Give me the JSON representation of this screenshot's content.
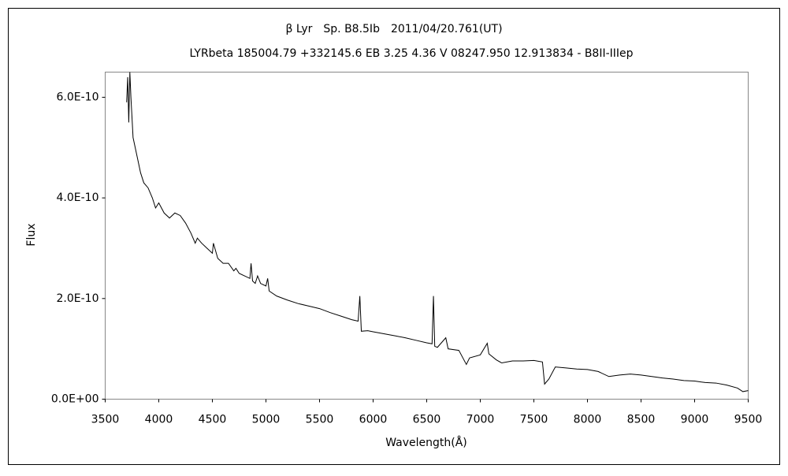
{
  "chart_data": {
    "type": "line",
    "title": "β Lyr　Sp. B8.5Ib　2011/04/20.761(UT)",
    "subtitle": "LYRbeta 185004.79 +332145.6 EB 3.25 4.36 V 08247.950 12.913834 - B8II-IIIep",
    "x_label": "Wavelength(Å)",
    "y_label": "Flux",
    "color": "#000000",
    "grid": false,
    "xlim": [
      3500,
      9500
    ],
    "xticks": [
      3500,
      4000,
      4500,
      5000,
      5500,
      6000,
      6500,
      7000,
      7500,
      8000,
      8500,
      9000,
      9500
    ],
    "ylim": [
      0,
      6.5e-10
    ],
    "yticks": [
      {
        "value": 0,
        "label": "0.0E+00"
      },
      {
        "value": 2e-10,
        "label": "2.0E-10"
      },
      {
        "value": 4e-10,
        "label": "4.0E-10"
      },
      {
        "value": 6e-10,
        "label": "6.0E-10"
      }
    ],
    "x": [
      3700,
      3710,
      3720,
      3730,
      3740,
      3750,
      3760,
      3780,
      3800,
      3830,
      3860,
      3900,
      3940,
      3970,
      4000,
      4050,
      4100,
      4150,
      4200,
      4250,
      4300,
      4340,
      4360,
      4400,
      4450,
      4500,
      4510,
      4550,
      4600,
      4650,
      4700,
      4720,
      4750,
      4800,
      4850,
      4861,
      4875,
      4900,
      4922,
      4950,
      5000,
      5016,
      5030,
      5100,
      5200,
      5300,
      5400,
      5500,
      5600,
      5700,
      5800,
      5860,
      5876,
      5890,
      5950,
      6000,
      6100,
      6200,
      6300,
      6400,
      6500,
      6550,
      6563,
      6575,
      6600,
      6678,
      6700,
      6800,
      6870,
      6900,
      7000,
      7065,
      7080,
      7150,
      7200,
      7300,
      7400,
      7500,
      7580,
      7600,
      7640,
      7700,
      7800,
      7900,
      8000,
      8100,
      8200,
      8300,
      8400,
      8500,
      8600,
      8700,
      8800,
      8900,
      9000,
      9100,
      9200,
      9300,
      9400,
      9450,
      9500
    ],
    "values": [
      5.9e-10,
      6.4e-10,
      5.5e-10,
      6.5e-10,
      6e-10,
      5.6e-10,
      5.2e-10,
      5e-10,
      4.8e-10,
      4.5e-10,
      4.3e-10,
      4.2e-10,
      4e-10,
      3.8e-10,
      3.9e-10,
      3.7e-10,
      3.6e-10,
      3.7e-10,
      3.65e-10,
      3.5e-10,
      3.3e-10,
      3.1e-10,
      3.2e-10,
      3.1e-10,
      3e-10,
      2.9e-10,
      3.1e-10,
      2.8e-10,
      2.7e-10,
      2.7e-10,
      2.55e-10,
      2.6e-10,
      2.5e-10,
      2.45e-10,
      2.4e-10,
      2.7e-10,
      2.35e-10,
      2.3e-10,
      2.45e-10,
      2.3e-10,
      2.25e-10,
      2.4e-10,
      2.15e-10,
      2.05e-10,
      1.97e-10,
      1.9e-10,
      1.85e-10,
      1.8e-10,
      1.72e-10,
      1.65e-10,
      1.58e-10,
      1.55e-10,
      2.05e-10,
      1.35e-10,
      1.36e-10,
      1.34e-10,
      1.3e-10,
      1.26e-10,
      1.22e-10,
      1.17e-10,
      1.12e-10,
      1.1e-10,
      2.05e-10,
      1.05e-10,
      1.03e-10,
      1.22e-10,
      1e-10,
      9.7e-11,
      6.9e-11,
      8.2e-11,
      8.8e-11,
      1.11e-10,
      9e-11,
      7.8e-11,
      7.2e-11,
      7.6e-11,
      7.6e-11,
      7.7e-11,
      7.4e-11,
      3e-11,
      4e-11,
      6.4e-11,
      6.2e-11,
      6e-11,
      5.9e-11,
      5.5e-11,
      4.5e-11,
      4.8e-11,
      5e-11,
      4.8e-11,
      4.5e-11,
      4.2e-11,
      4e-11,
      3.7e-11,
      3.6e-11,
      3.3e-11,
      3.2e-11,
      2.8e-11,
      2.2e-11,
      1.5e-11,
      1.7e-11
    ]
  }
}
